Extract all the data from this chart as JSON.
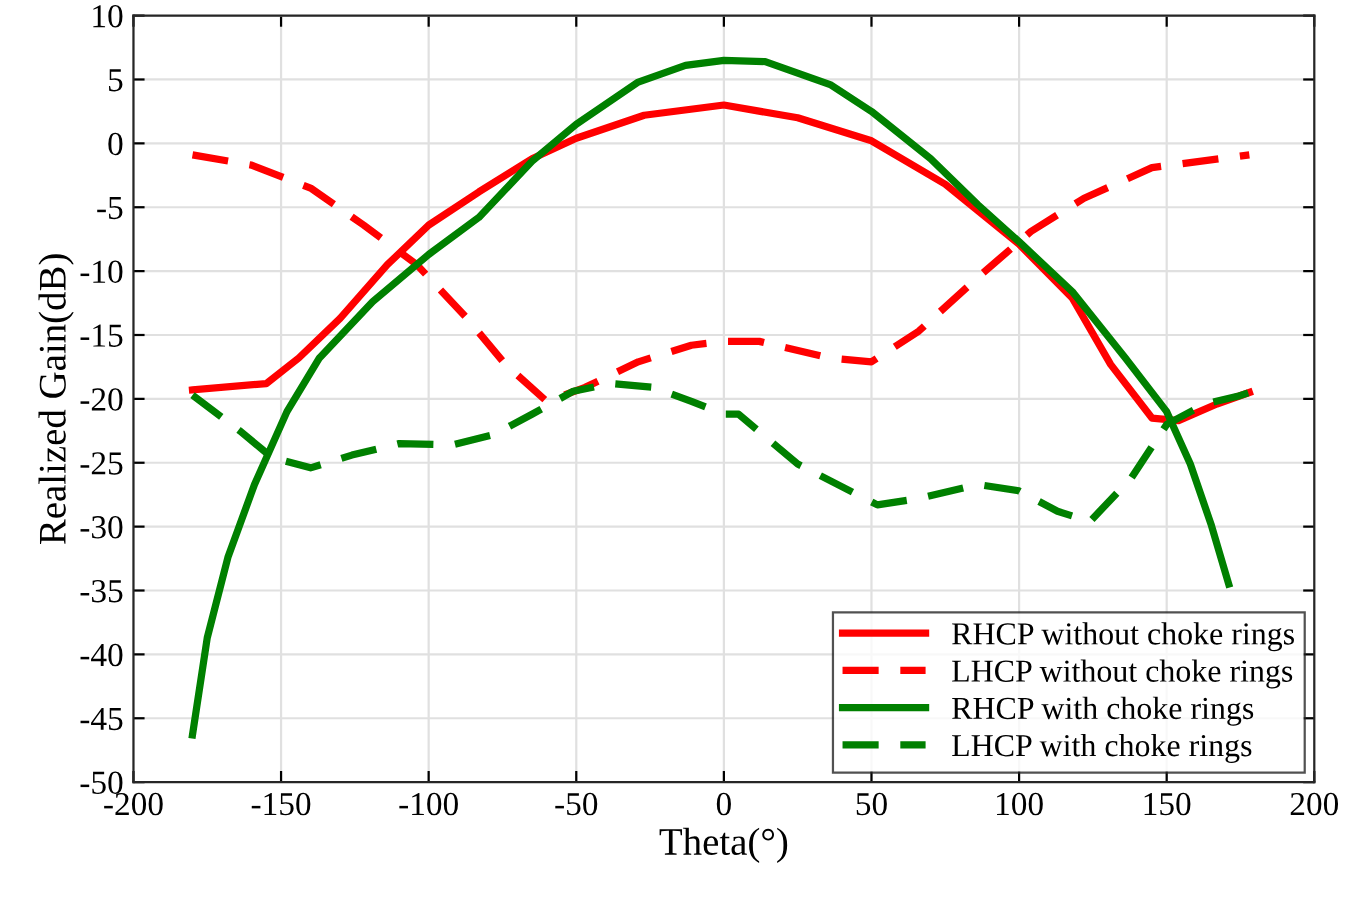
{
  "chart_data": {
    "type": "line",
    "xlabel": "Theta(°)",
    "ylabel": "Realized Gain(dB)",
    "xlim": [
      -200,
      200
    ],
    "xticks": [
      -200,
      -150,
      -100,
      -50,
      0,
      50,
      100,
      150,
      200
    ],
    "ylim": [
      -50,
      10
    ],
    "yticks": [
      -50,
      -45,
      -40,
      -35,
      -30,
      -25,
      -20,
      -15,
      -10,
      -5,
      0,
      5,
      10
    ],
    "grid": true,
    "legend": "bottom right",
    "series": [
      {
        "name": "RHCP without choke rings",
        "color": "#ff0000",
        "line_style": "solid",
        "x": [
          -180,
          -155,
          -144,
          -130,
          -114,
          -100,
          -83,
          -65,
          -50,
          -27,
          0,
          25,
          50,
          75,
          100,
          118,
          131,
          145,
          154,
          167,
          178
        ],
        "values": [
          -19.3,
          -18.8,
          -16.8,
          -13.7,
          -9.5,
          -6.4,
          -3.8,
          -1.2,
          0.4,
          2.2,
          3.0,
          2.0,
          0.2,
          -3.2,
          -7.9,
          -12.1,
          -17.3,
          -21.5,
          -21.7,
          -20.4,
          -19.5
        ]
      },
      {
        "name": "LHCP without choke rings",
        "color": "#ff0000",
        "line_style": "dashed",
        "x": [
          -180,
          -160,
          -140,
          -122,
          -104,
          -87,
          -74,
          -60,
          -47,
          -29,
          -11,
          0,
          12,
          36,
          50,
          66,
          86,
          104,
          122,
          145,
          178
        ],
        "values": [
          -0.9,
          -1.7,
          -3.5,
          -6.4,
          -9.5,
          -13.7,
          -17.3,
          -20.2,
          -19.1,
          -17.1,
          -15.8,
          -15.5,
          -15.5,
          -16.8,
          -17.1,
          -14.7,
          -10.5,
          -6.9,
          -4.3,
          -1.9,
          -0.9
        ]
      },
      {
        "name": "RHCP with choke rings",
        "color": "#008000",
        "line_style": "solid",
        "x": [
          -180,
          -175,
          -168,
          -159,
          -148,
          -137,
          -119,
          -100,
          -83,
          -65,
          -50,
          -29,
          -13,
          0,
          14,
          36,
          50,
          70,
          86,
          100,
          118,
          136,
          150,
          158,
          165,
          171
        ],
        "values": [
          -46.3,
          -38.7,
          -32.4,
          -26.7,
          -21.0,
          -16.8,
          -12.4,
          -8.7,
          -5.8,
          -1.4,
          1.5,
          4.8,
          6.1,
          6.5,
          6.4,
          4.6,
          2.5,
          -1.2,
          -4.8,
          -7.7,
          -11.6,
          -16.8,
          -21.0,
          -25.1,
          -29.8,
          -34.5
        ]
      },
      {
        "name": "LHCP with choke rings",
        "color": "#008000",
        "line_style": "dashed",
        "x": [
          -180,
          -164,
          -153,
          -140,
          -126,
          -110,
          -92,
          -78,
          -65,
          -51,
          -38,
          -24,
          -11,
          0,
          5,
          25,
          52,
          66,
          86,
          100,
          113,
          124,
          138,
          150,
          163,
          174,
          178
        ],
        "values": [
          -19.7,
          -22.5,
          -24.6,
          -25.4,
          -24.4,
          -23.5,
          -23.6,
          -22.8,
          -21.2,
          -19.4,
          -18.8,
          -19.1,
          -20.2,
          -21.2,
          -21.2,
          -25.1,
          -28.3,
          -27.8,
          -26.7,
          -27.2,
          -28.8,
          -29.6,
          -26.2,
          -22.0,
          -20.4,
          -19.8,
          -19.5
        ]
      }
    ]
  }
}
